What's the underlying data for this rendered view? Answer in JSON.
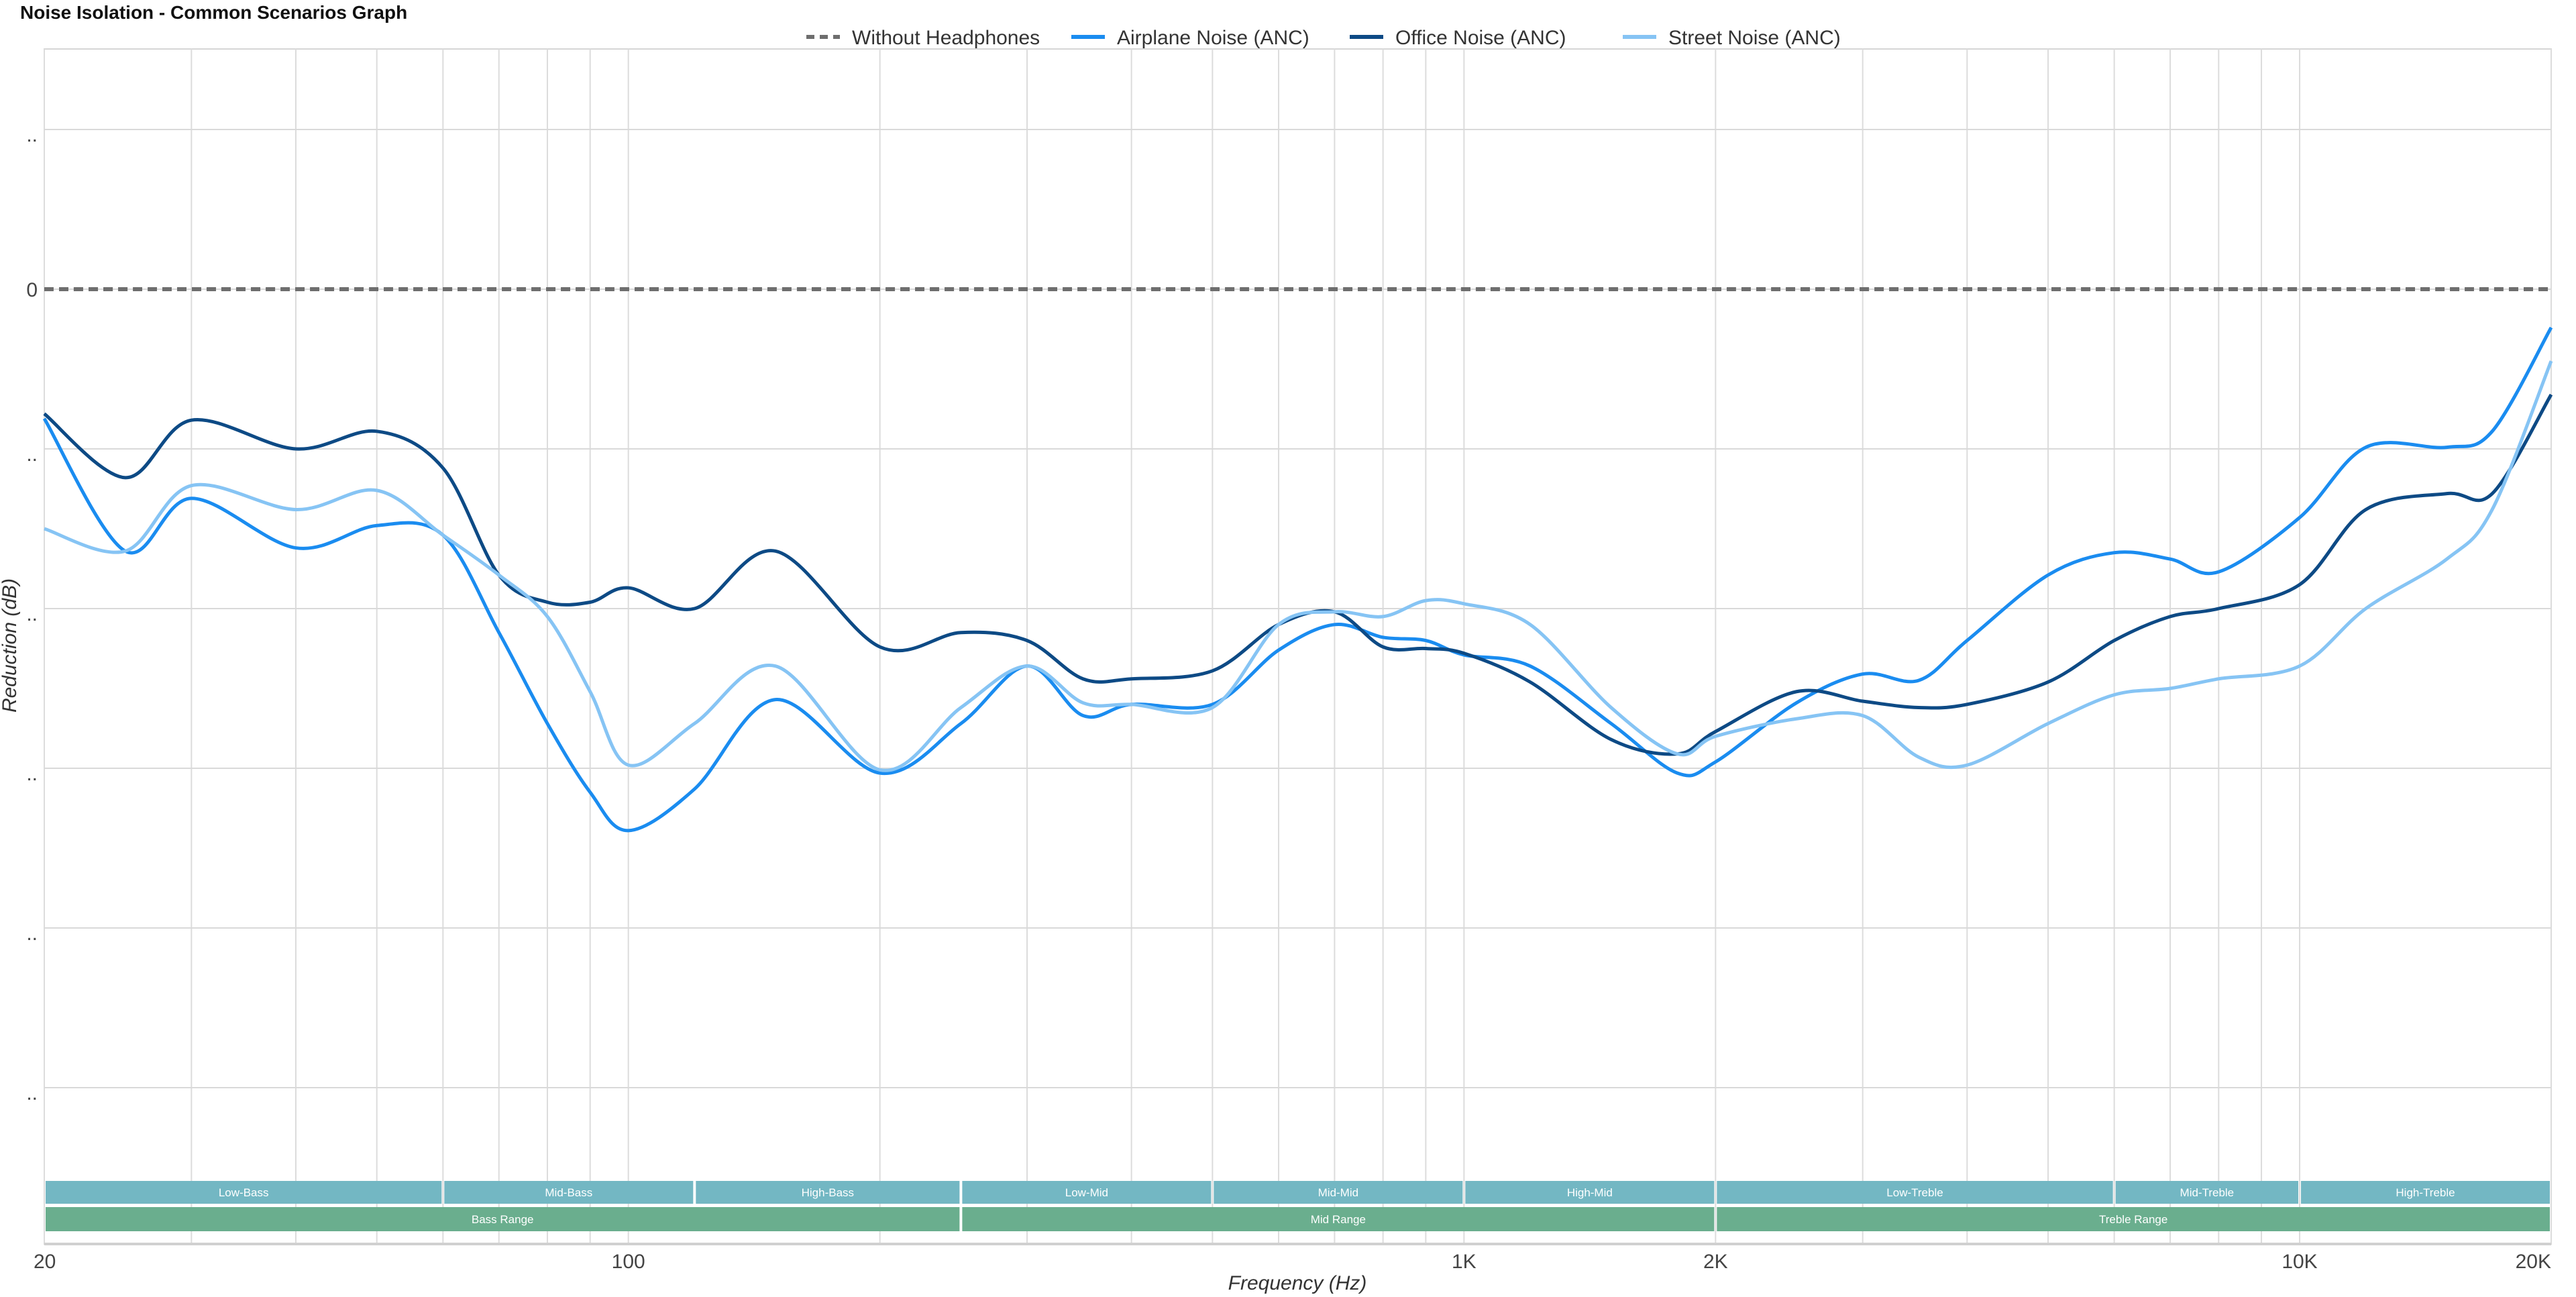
{
  "chart_data": {
    "type": "line",
    "title": "Noise Isolation - Common Scenarios Graph",
    "xlabel": "Frequency (Hz)",
    "ylabel": "Reduction (dB)",
    "xscale": "log",
    "xlim": [
      20,
      20000
    ],
    "ylim": [
      -57,
      14
    ],
    "x_ticks": [
      {
        "v": 20,
        "label": "20"
      },
      {
        "v": 100,
        "label": "100"
      },
      {
        "v": 1000,
        "label": "1K"
      },
      {
        "v": 2000,
        "label": "2K"
      },
      {
        "v": 10000,
        "label": "10K"
      },
      {
        "v": 20000,
        "label": "20K"
      }
    ],
    "y_ticks": [
      {
        "v": 10,
        "label": ".."
      },
      {
        "v": 0,
        "label": "0"
      },
      {
        "v": -10,
        "label": ".."
      },
      {
        "v": -20,
        "label": ".."
      },
      {
        "v": -30,
        "label": ".."
      },
      {
        "v": -40,
        "label": ".."
      },
      {
        "v": -50,
        "label": ".."
      }
    ],
    "grid": true,
    "legend_position": "top-center",
    "x": [
      20,
      25,
      30,
      40,
      50,
      60,
      70,
      80,
      90,
      100,
      120,
      150,
      200,
      250,
      300,
      350,
      400,
      500,
      600,
      700,
      800,
      900,
      1000,
      1200,
      1500,
      1800,
      2000,
      2500,
      3000,
      3500,
      4000,
      5000,
      6000,
      7000,
      8000,
      10000,
      12000,
      15000,
      17000,
      20000
    ],
    "series": [
      {
        "name": "Without Headphones",
        "color": "#6e6e6e",
        "dashed": true,
        "values": [
          0,
          0,
          0,
          0,
          0,
          0,
          0,
          0,
          0,
          0,
          0,
          0,
          0,
          0,
          0,
          0,
          0,
          0,
          0,
          0,
          0,
          0,
          0,
          0,
          0,
          0,
          0,
          0,
          0,
          0,
          0,
          0,
          0,
          0,
          0,
          0,
          0,
          0,
          0,
          0
        ]
      },
      {
        "name": "Airplane Noise (ANC)",
        "color": "#1a8cf0",
        "dashed": false,
        "values": [
          -8.1,
          -16.4,
          -13.1,
          -16.2,
          -14.8,
          -15.4,
          -21.5,
          -27.2,
          -31.5,
          -33.9,
          -31.3,
          -25.7,
          -30.3,
          -27.2,
          -23.6,
          -26.7,
          -26,
          -26,
          -22.6,
          -21,
          -21.8,
          -22,
          -22.9,
          -23.6,
          -27.2,
          -30.3,
          -29.6,
          -25.9,
          -24.1,
          -24.5,
          -22,
          -17.9,
          -16.5,
          -16.9,
          -17.7,
          -14.3,
          -9.9,
          -9.9,
          -8.9,
          -2.4
        ]
      },
      {
        "name": "Office Noise (ANC)",
        "color": "#0d4a85",
        "dashed": false,
        "values": [
          -7.8,
          -11.8,
          -8.2,
          -10,
          -8.9,
          -11.2,
          -17.9,
          -19.6,
          -19.6,
          -18.7,
          -20,
          -16.4,
          -22.4,
          -21.5,
          -22,
          -24.4,
          -24.4,
          -23.9,
          -21,
          -20.2,
          -22.4,
          -22.5,
          -22.8,
          -24.6,
          -28.2,
          -29.1,
          -27.7,
          -25.2,
          -25.8,
          -26.2,
          -26,
          -24.6,
          -22,
          -20.5,
          -20,
          -18.5,
          -13.8,
          -12.8,
          -12.8,
          -6.6
        ]
      },
      {
        "name": "Street Noise (ANC)",
        "color": "#86c4f4",
        "dashed": false,
        "values": [
          -15,
          -16.4,
          -12.3,
          -13.8,
          -12.6,
          -15.4,
          -17.9,
          -20.5,
          -25.2,
          -29.8,
          -27.2,
          -23.6,
          -30.1,
          -26.2,
          -23.6,
          -25.9,
          -26,
          -26.2,
          -21,
          -20.2,
          -20.5,
          -19.5,
          -19.7,
          -21,
          -26.2,
          -29.1,
          -28,
          -26.9,
          -26.7,
          -29.3,
          -29.8,
          -27.2,
          -25.4,
          -25,
          -24.4,
          -23.6,
          -20,
          -16.9,
          -13.8,
          -4.5
        ]
      }
    ],
    "sub_bands": [
      {
        "label": "Low-Bass",
        "from": 20,
        "to": 60
      },
      {
        "label": "Mid-Bass",
        "from": 60,
        "to": 120
      },
      {
        "label": "High-Bass",
        "from": 120,
        "to": 250
      },
      {
        "label": "Low-Mid",
        "from": 250,
        "to": 500
      },
      {
        "label": "Mid-Mid",
        "from": 500,
        "to": 1000
      },
      {
        "label": "High-Mid",
        "from": 1000,
        "to": 2000
      },
      {
        "label": "Low-Treble",
        "from": 2000,
        "to": 6000
      },
      {
        "label": "Mid-Treble",
        "from": 6000,
        "to": 10000
      },
      {
        "label": "High-Treble",
        "from": 10000,
        "to": 20000
      }
    ],
    "ranges": [
      {
        "label": "Bass Range",
        "from": 20,
        "to": 250
      },
      {
        "label": "Mid Range",
        "from": 250,
        "to": 2000
      },
      {
        "label": "Treble Range",
        "from": 2000,
        "to": 20000
      }
    ],
    "band_colors": {
      "sub": "#73b7c3",
      "range": "#6aae8e"
    }
  }
}
